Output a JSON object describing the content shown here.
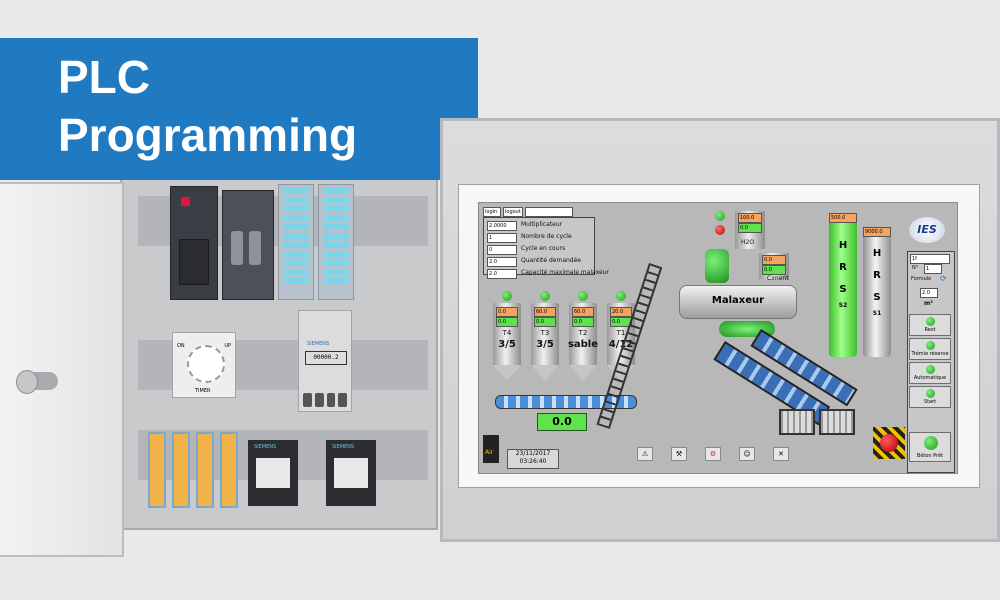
{
  "banner": {
    "title_line1": "PLC",
    "title_line2": "Programming",
    "color": "#1f7ac2"
  },
  "cabinet": {
    "timer_label": "TIMER",
    "timer_on": "ON",
    "timer_up": "UP",
    "counter_label": "SIEMENS",
    "counter_value": "00000.2",
    "contactor_brand": "SIEMENS"
  },
  "hmi": {
    "header_buttons": [
      "login",
      "logout"
    ],
    "params": [
      {
        "value": "2.0000",
        "label": "Multiplicateur"
      },
      {
        "value": "1",
        "label": "Nombre de cycle"
      },
      {
        "value": "0",
        "label": "Cycle en cours"
      },
      {
        "value": "2.0",
        "label": "Quantité demandée"
      },
      {
        "value": "2.0",
        "label": "Capacité maximale malaxeur"
      }
    ],
    "silos": [
      {
        "top": "0.0",
        "mid": "0.0",
        "name": "T4",
        "ratio": "3/5"
      },
      {
        "top": "60.0",
        "mid": "0.0",
        "name": "T3",
        "ratio": "3/5"
      },
      {
        "top": "60.0",
        "mid": "0.0",
        "name": "T2",
        "ratio": "sable"
      },
      {
        "top": "20.0",
        "mid": "0.0",
        "name": "T1",
        "ratio": "4/12"
      }
    ],
    "conveyor_value": "0.0",
    "air_label": "Air",
    "date": "23/11/2017",
    "time": "03:26:40",
    "water_top": "100.0",
    "water_mid": "0.0",
    "water_label": "H2O",
    "cement_top": "0.0",
    "cement_mid": "0.0",
    "cement_label": "Ciment",
    "mixer_label": "Malaxeur",
    "hrs_s2_value": "500.0",
    "hrs_s1_value": "9000.0",
    "hrs_letters": [
      "H",
      "R",
      "S"
    ],
    "hrs_s2": "S2",
    "hrs_s1": "S1",
    "logo": "IES",
    "side": {
      "top_field": "1f",
      "no_label": "N°",
      "no_value": "1",
      "formule": "Formule",
      "m3_value": "2.0",
      "m3_unit": "m³",
      "buttons": [
        "Rest",
        "Trémie réserve",
        "Automatique",
        "Start",
        "Béton Prêt"
      ]
    },
    "toolbar_icons": [
      "warning-icon",
      "tools-icon",
      "gear-icon",
      "users-icon",
      "wrench-icon"
    ],
    "colors": {
      "silo_green": "#5fe34c",
      "hmi_bg": "#b8b8b8",
      "conveyor": "#4a8fd8"
    }
  }
}
